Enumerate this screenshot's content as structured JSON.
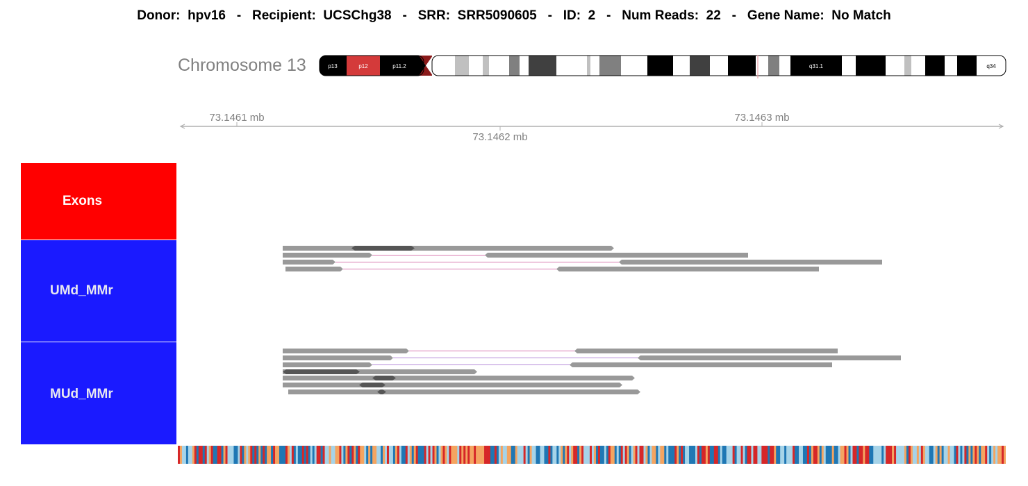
{
  "header": {
    "donor_label": "Donor:",
    "donor": "hpv16",
    "recipient_label": "Recipient:",
    "recipient": "UCSChg38",
    "srr_label": "SRR:",
    "srr": "SRR5090605",
    "id_label": "ID:",
    "id": "2",
    "num_reads_label": "Num Reads:",
    "num_reads": "22",
    "gene_name_label": "Gene Name:",
    "gene_name": "No Match",
    "separator": "-"
  },
  "chromosome": {
    "label": "Chromosome 13",
    "band_labels": [
      "p13",
      "p12",
      "p11.2",
      "q31.1",
      "q34"
    ],
    "highlight_color": "#d43a3a",
    "marker_color": "#e8a0a8"
  },
  "axis": {
    "ticks": [
      "73.1461 mb",
      "73.1462 mb",
      "73.1463 mb"
    ]
  },
  "tracks": {
    "exons_label": "Exons",
    "umd_label": "UMd_MMr",
    "mud_label": "MUd_MMr",
    "exons_color": "#ff0000",
    "reads_panel_color": "#1a1aff",
    "read_color": "#999999",
    "read_dark_color": "#555555",
    "junction_color": "#d97ab0"
  },
  "sequence_colors": [
    "#d62728",
    "#1f77b4",
    "#f4a460",
    "#a6d3e8"
  ]
}
